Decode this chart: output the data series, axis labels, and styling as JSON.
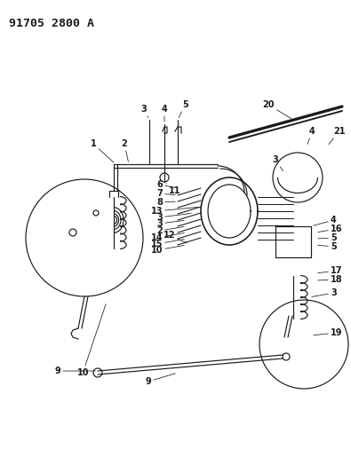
{
  "title": "91705 2800 A",
  "bg_color": "#ffffff",
  "line_color": "#1a1a1a",
  "title_fontsize": 9.5,
  "label_fontsize": 7.0,
  "label_fontsize_sm": 6.5,
  "fig_w": 3.95,
  "fig_h": 5.33,
  "dpi": 100
}
